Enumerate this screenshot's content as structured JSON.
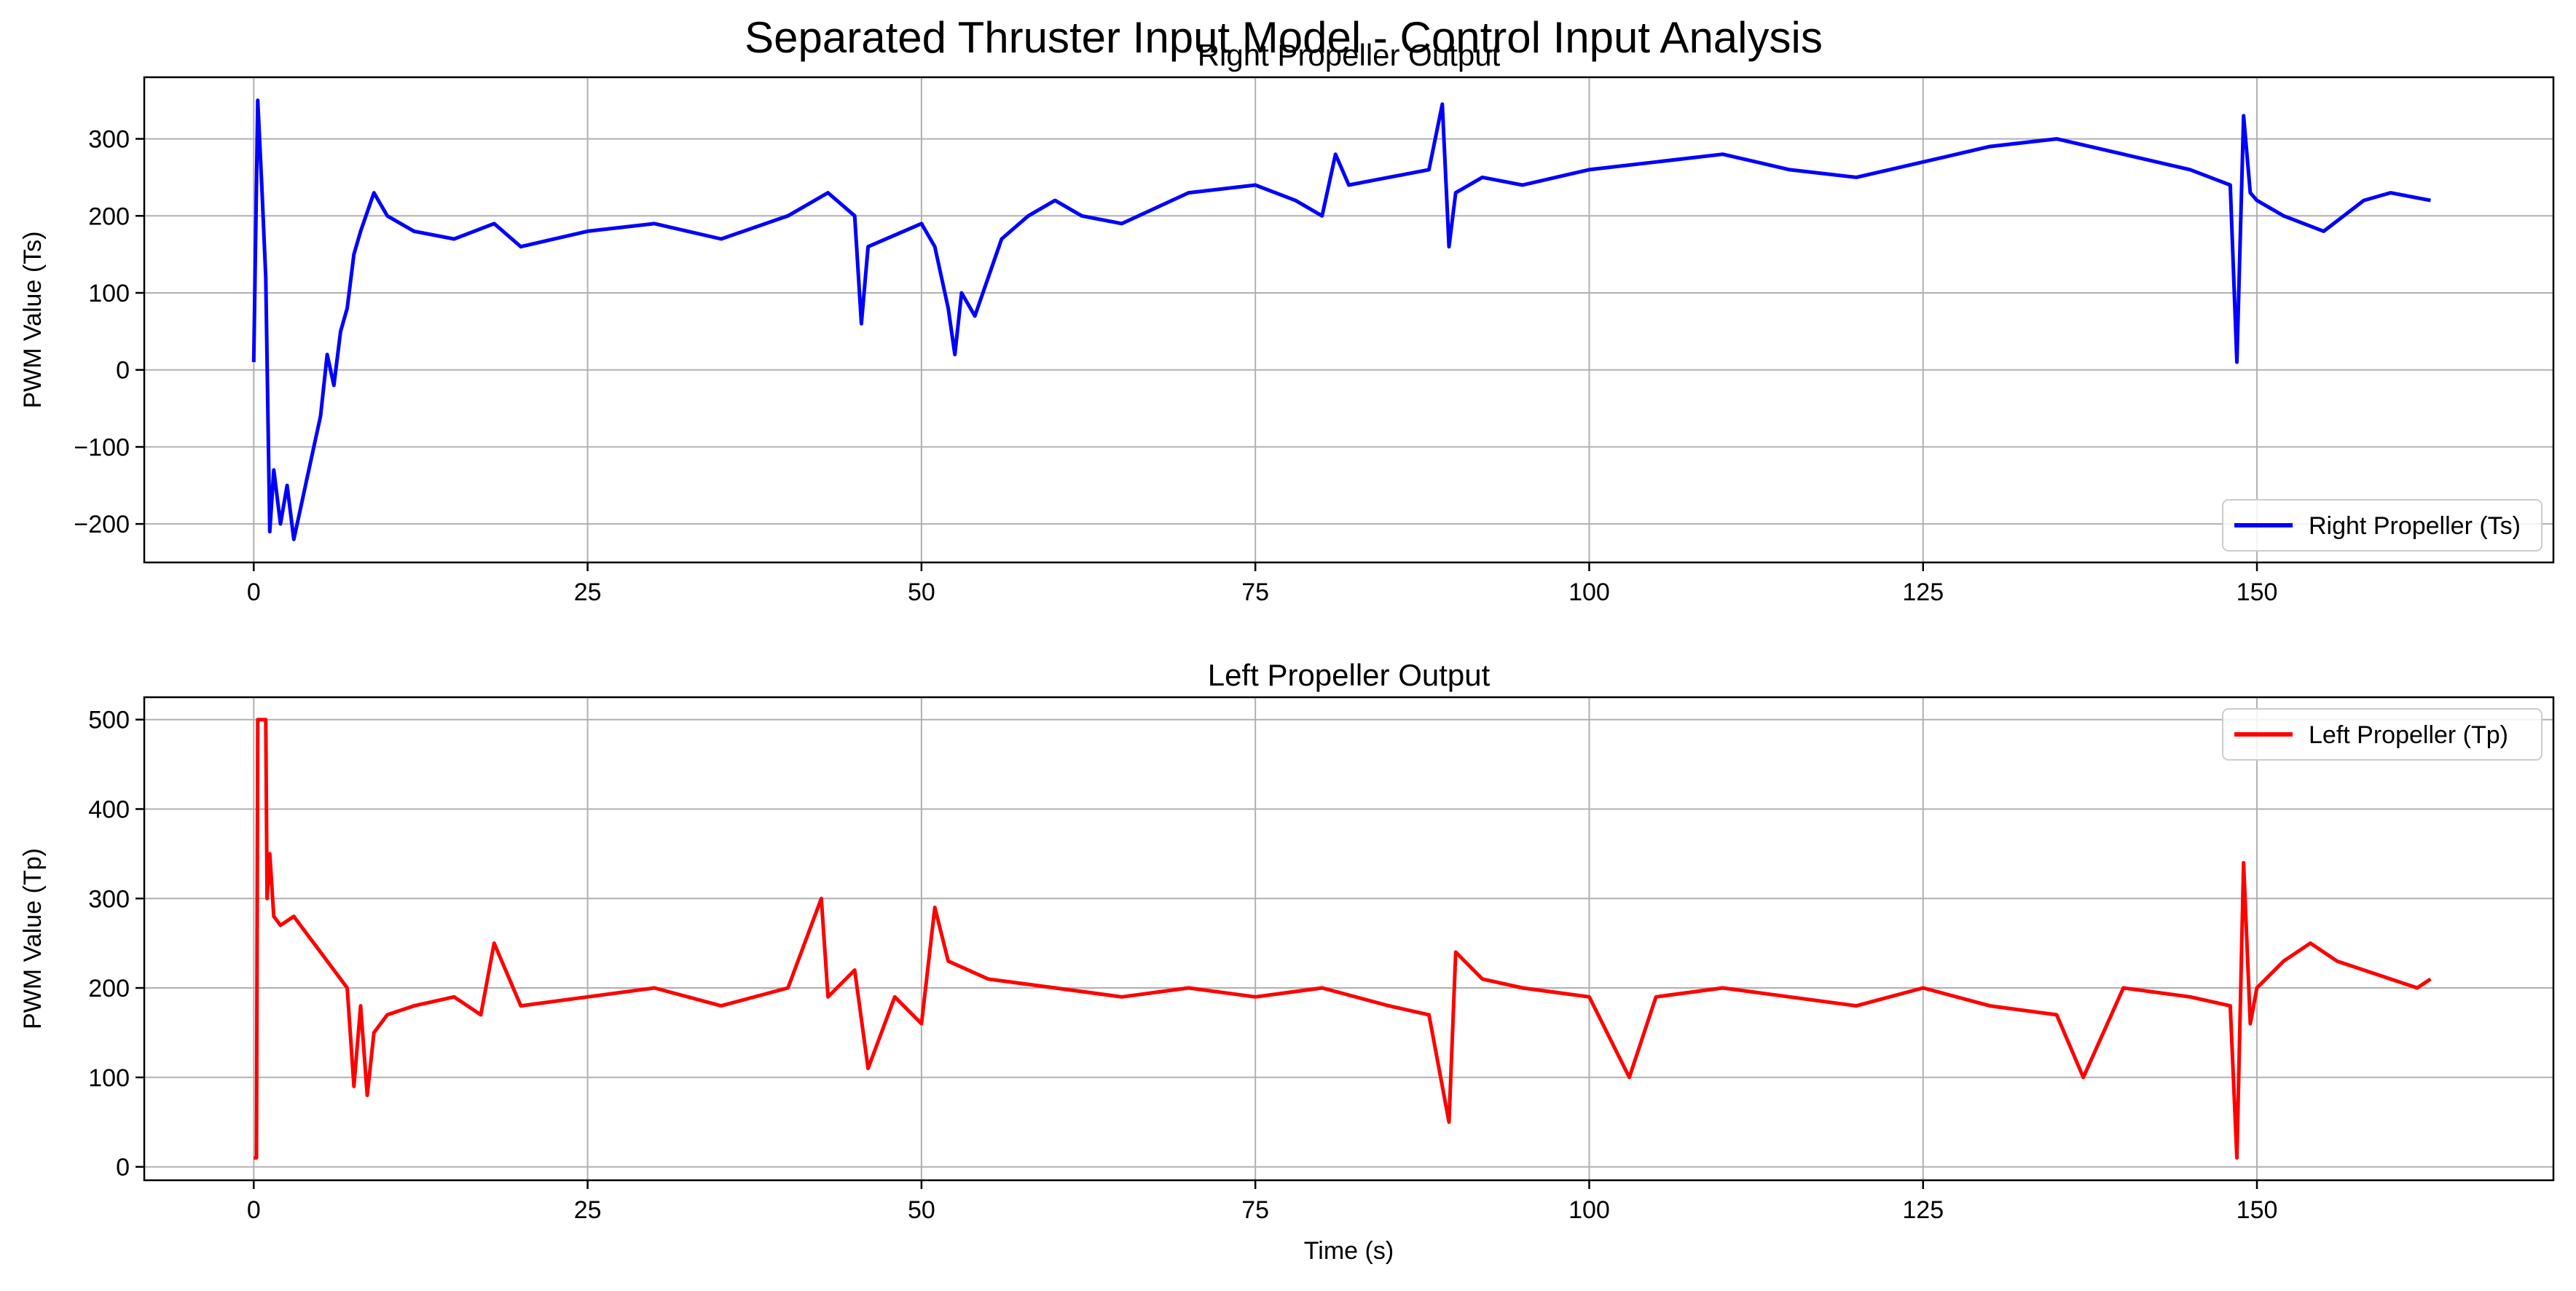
{
  "figure": {
    "suptitle": "Separated Thruster Input Model - Control Input Analysis"
  },
  "chart_data": [
    {
      "type": "line",
      "title": "Right Propeller Output",
      "xlabel": "",
      "ylabel": "PWM Value (Ts)",
      "xlim": [
        -8.2,
        172.2
      ],
      "ylim": [
        -250,
        380
      ],
      "xticks": [
        0,
        25,
        50,
        75,
        100,
        125,
        150
      ],
      "yticks": [
        -200,
        -100,
        0,
        100,
        200,
        300
      ],
      "grid": true,
      "legend": "lower right",
      "series": [
        {
          "name": "Right Propeller (Ts)",
          "color": "#0000ff",
          "x": [
            0,
            0.3,
            0.6,
            0.9,
            1.2,
            1.5,
            2,
            2.5,
            3,
            3.5,
            4,
            4.5,
            5,
            5.5,
            6,
            6.5,
            7,
            7.5,
            8,
            9,
            10,
            12,
            15,
            18,
            20,
            25,
            30,
            35,
            40,
            43,
            45,
            45.5,
            46,
            50,
            51,
            52,
            52.5,
            53,
            54,
            55,
            56,
            58,
            60,
            62,
            65,
            70,
            75,
            78,
            80,
            81,
            82,
            85,
            88,
            89,
            89.5,
            90,
            92,
            95,
            100,
            105,
            110,
            115,
            120,
            125,
            130,
            135,
            140,
            145,
            148,
            148.5,
            149,
            149.5,
            150,
            152,
            155,
            158,
            160,
            163
          ],
          "y": [
            10,
            350,
            240,
            120,
            -210,
            -130,
            -200,
            -150,
            -220,
            -180,
            -140,
            -100,
            -60,
            20,
            -20,
            50,
            80,
            150,
            180,
            230,
            200,
            180,
            170,
            190,
            160,
            180,
            190,
            170,
            200,
            230,
            200,
            60,
            160,
            190,
            160,
            80,
            20,
            100,
            70,
            120,
            170,
            200,
            220,
            200,
            190,
            230,
            240,
            220,
            200,
            280,
            240,
            250,
            260,
            345,
            160,
            230,
            250,
            240,
            260,
            270,
            280,
            260,
            250,
            270,
            290,
            300,
            280,
            260,
            240,
            10,
            330,
            230,
            220,
            200,
            180,
            220,
            230,
            220
          ]
        }
      ]
    },
    {
      "type": "line",
      "title": "Left Propeller Output",
      "xlabel": "Time (s)",
      "ylabel": "PWM Value (Tp)",
      "xlim": [
        -8.2,
        172.2
      ],
      "ylim": [
        -15,
        525
      ],
      "xticks": [
        0,
        25,
        50,
        75,
        100,
        125,
        150
      ],
      "yticks": [
        0,
        100,
        200,
        300,
        400,
        500
      ],
      "grid": true,
      "legend": "upper right",
      "series": [
        {
          "name": "Left Propeller (Tp)",
          "color": "#ff0000",
          "x": [
            0,
            0.2,
            0.3,
            0.9,
            1,
            1.2,
            1.5,
            2,
            3,
            4,
            5,
            6,
            7,
            7.5,
            8,
            8.5,
            9,
            10,
            12,
            15,
            17,
            18,
            20,
            25,
            30,
            35,
            40,
            42.5,
            43,
            45,
            46,
            48,
            50,
            51,
            52,
            55,
            60,
            65,
            70,
            75,
            80,
            85,
            88,
            89.5,
            90,
            92,
            95,
            100,
            103,
            105,
            110,
            115,
            120,
            125,
            130,
            135,
            137,
            140,
            145,
            148,
            148.5,
            149,
            149.5,
            150,
            152,
            154,
            156,
            158,
            160,
            162,
            163
          ],
          "y": [
            10,
            10,
            500,
            500,
            300,
            350,
            280,
            270,
            280,
            260,
            240,
            220,
            200,
            90,
            180,
            80,
            150,
            170,
            180,
            190,
            170,
            250,
            180,
            190,
            200,
            180,
            200,
            300,
            190,
            220,
            110,
            190,
            160,
            290,
            230,
            210,
            200,
            190,
            200,
            190,
            200,
            180,
            170,
            50,
            240,
            210,
            200,
            190,
            100,
            190,
            200,
            190,
            180,
            200,
            180,
            170,
            100,
            200,
            190,
            180,
            10,
            340,
            160,
            200,
            230,
            250,
            230,
            220,
            210,
            200,
            210
          ]
        }
      ]
    }
  ]
}
